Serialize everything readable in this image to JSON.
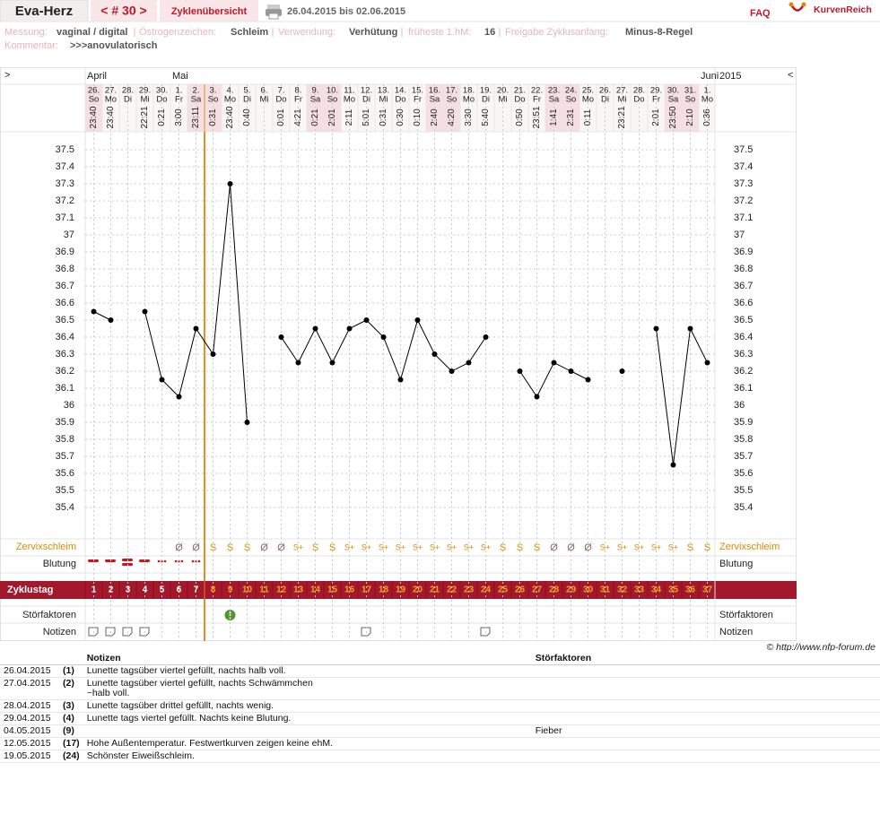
{
  "header": {
    "user": "Eva-Herz",
    "cycle": "< # 30 >",
    "overview": "Zyklenübersicht",
    "range": "26.04.2015 bis 02.06.2015",
    "faq": "FAQ",
    "logo": "KurvenReich"
  },
  "info": {
    "measure_label": "Messung:",
    "measure": "vaginal / digital",
    "estrogen_label": "Östrogenzeichen:",
    "estrogen": "Schleim",
    "use_label": "Verwendung:",
    "use": "Verhütung",
    "earliest_label": "früheste 1.hM:",
    "earliest": "16",
    "release_label": "Freigabe Zyklusanfang:",
    "release": "Minus-8-Regel",
    "comment_label": "Kommentar:",
    "comment": ">>>anovulatorisch"
  },
  "chart_data": {
    "type": "line",
    "prev": ">",
    "next": "<",
    "year": "2015",
    "months": [
      "April",
      "Mai",
      "Juni"
    ],
    "categories": [
      "26.",
      "27.",
      "28.",
      "29.",
      "30.",
      "1.",
      "2.",
      "3.",
      "4.",
      "5.",
      "6.",
      "7.",
      "8.",
      "9.",
      "10.",
      "11.",
      "12.",
      "13.",
      "14.",
      "15.",
      "16.",
      "17.",
      "18.",
      "19.",
      "20.",
      "21.",
      "22.",
      "23.",
      "24.",
      "25.",
      "26.",
      "27.",
      "28.",
      "29.",
      "30.",
      "31.",
      "1."
    ],
    "weekdays": [
      "So",
      "Mo",
      "Di",
      "Mi",
      "Do",
      "Fr",
      "Sa",
      "So",
      "Mo",
      "Di",
      "Mi",
      "Do",
      "Fr",
      "Sa",
      "So",
      "Mo",
      "Di",
      "Mi",
      "Do",
      "Fr",
      "Sa",
      "So",
      "Mo",
      "Di",
      "Mi",
      "Do",
      "Fr",
      "Sa",
      "So",
      "Mo",
      "Di",
      "Mi",
      "Do",
      "Fr",
      "Sa",
      "So",
      "Mo"
    ],
    "times": [
      "23:40",
      "23:40",
      null,
      "22:21",
      "0:21",
      "3:00",
      "23:11",
      "0:31",
      "23:40",
      "0:40",
      null,
      "0:01",
      "4:21",
      "0:21",
      "2:01",
      "2:11",
      "5:01",
      "0:31",
      "0:30",
      "0:10",
      "2:40",
      "4:20",
      "3:30",
      "5:40",
      null,
      "0:50",
      "23:51",
      "1:41",
      "2:31",
      "0:11",
      null,
      "23:21",
      null,
      "2:01",
      "23:50",
      "2:10",
      "0:36"
    ],
    "series": [
      {
        "color": "#000000",
        "values": [
          36.55,
          36.5,
          null,
          36.55,
          36.15,
          36.05,
          36.45,
          36.3,
          37.3,
          35.9,
          null,
          36.4,
          36.25,
          36.45,
          36.25,
          36.45,
          36.5,
          36.4,
          36.15,
          36.5,
          36.3,
          36.2,
          36.25,
          36.4,
          null,
          36.2,
          36.05,
          36.25,
          36.2,
          36.15,
          null,
          36.2,
          null,
          36.45,
          35.65,
          36.45,
          36.25
        ]
      }
    ],
    "ylim": [
      35.2,
      37.6
    ],
    "yticks": [
      35.4,
      35.5,
      35.6,
      35.7,
      35.8,
      35.9,
      36,
      36.1,
      36.2,
      36.3,
      36.4,
      36.5,
      36.6,
      36.7,
      36.8,
      36.9,
      37,
      37.1,
      37.2,
      37.3,
      37.4,
      37.5
    ],
    "grid": true
  },
  "rows": {
    "mucus_label": "Zervixschleim",
    "bleeding_label": "Blutung",
    "cycle_label": "Zyklustag",
    "factors_label": "Störfaktoren",
    "notes_label": "Notizen",
    "mucus": [
      null,
      null,
      null,
      null,
      null,
      "Ø",
      "Ø",
      "S",
      "S",
      "S",
      "Ø",
      "Ø",
      "S+",
      "S",
      "S",
      "S+",
      "S+",
      "S+",
      "S+",
      "S+",
      "S+",
      "S+",
      "S+",
      "S+",
      "S",
      "S",
      "S",
      "Ø",
      "Ø",
      "Ø",
      "S+",
      "S+",
      "S+",
      "S+",
      "S+",
      "S",
      "S"
    ],
    "cycle_days": [
      1,
      2,
      3,
      4,
      5,
      6,
      7,
      8,
      9,
      10,
      11,
      12,
      13,
      14,
      15,
      16,
      17,
      18,
      19,
      20,
      21,
      22,
      23,
      24,
      25,
      26,
      27,
      28,
      29,
      30,
      31,
      32,
      33,
      34,
      35,
      36,
      37
    ]
  },
  "copyright": "© http://www.nfp-forum.de",
  "notes": {
    "head_notes": "Notizen",
    "head_factors": "Störfaktoren",
    "rows": [
      {
        "date": "26.04.2015",
        "day": "(1)",
        "note": "Lunette tagsüber viertel gefüllt, nachts halb voll."
      },
      {
        "date": "27.04.2015",
        "day": "(2)",
        "note": "Lunette tagsüber viertel gefüllt, nachts Schwämmchen\n~halb voll."
      },
      {
        "date": "28.04.2015",
        "day": "(3)",
        "note": "Lunette tagsüber drittel gefüllt, nachts wenig."
      },
      {
        "date": "29.04.2015",
        "day": "(4)",
        "note": "Lunette tags viertel gefüllt. Nachts keine Blutung."
      },
      {
        "date": "04.05.2015",
        "day": "(9)",
        "factor": "Fieber"
      },
      {
        "date": "12.05.2015",
        "day": "(17)",
        "note": "Hohe Außentemperatur. Festwertkurven zeigen keine ehM."
      },
      {
        "date": "19.05.2015",
        "day": "(24)",
        "note": "Schönster Eiweißschleim."
      }
    ]
  }
}
